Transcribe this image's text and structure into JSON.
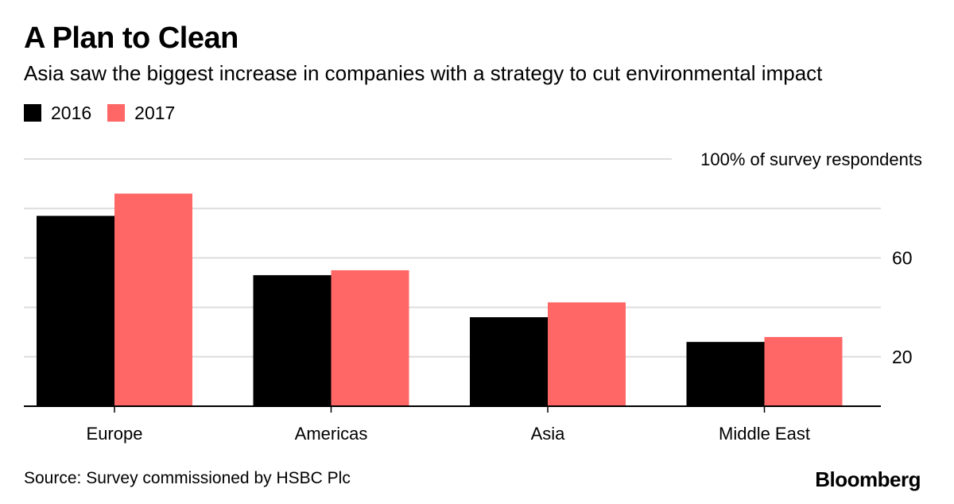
{
  "header": {
    "title": "A Plan to Clean",
    "subtitle": "Asia saw the biggest increase in companies with a strategy to cut environmental impact"
  },
  "legend": [
    {
      "label": "2016",
      "color": "#000000"
    },
    {
      "label": "2017",
      "color": "#ff6666"
    }
  ],
  "footer": {
    "source": "Source: Survey commissioned by HSBC Plc",
    "brand": "Bloomberg"
  },
  "chart_data": {
    "type": "bar",
    "categories": [
      "Europe",
      "Americas",
      "Asia",
      "Middle East"
    ],
    "series": [
      {
        "name": "2016",
        "values": [
          77,
          53,
          36,
          26
        ],
        "color": "#000000"
      },
      {
        "name": "2017",
        "values": [
          86,
          55,
          42,
          28
        ],
        "color": "#ff6666"
      }
    ],
    "ylim": [
      0,
      100
    ],
    "yticks": [
      20,
      40,
      60,
      80,
      100
    ],
    "ytick_labels": [
      "20",
      "",
      "60",
      "",
      "100% of survey respondents"
    ],
    "grid": true,
    "legend_position": "top-left",
    "gridline_color": "#dddddd"
  }
}
